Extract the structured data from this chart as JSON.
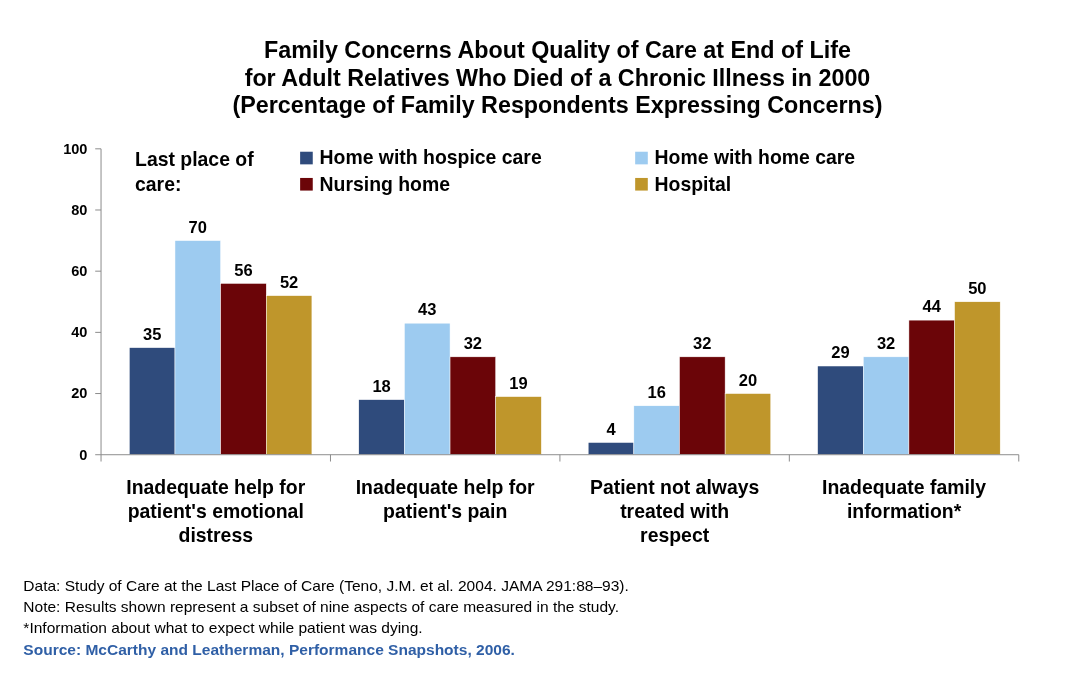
{
  "chart_data": {
    "type": "bar",
    "title": "Family Concerns About Quality of Care at End of Life\nfor Adult Relatives Who Died of a Chronic Illness in 2000\n(Percentage of Family Respondents Expressing Concerns)",
    "categories": [
      "Inadequate help for patient's emotional distress",
      "Inadequate help for patient's pain",
      "Patient not always treated with respect",
      "Inadequate family information*"
    ],
    "legend_title": "Last place of care:",
    "series": [
      {
        "name": "Home with hospice care",
        "color": "#2f4b7c",
        "values": [
          35,
          18,
          4,
          29
        ]
      },
      {
        "name": "Home with home care",
        "color": "#9dcbf0",
        "values": [
          70,
          43,
          16,
          32
        ]
      },
      {
        "name": "Nursing home",
        "color": "#6b0508",
        "values": [
          56,
          32,
          32,
          44
        ]
      },
      {
        "name": "Hospital",
        "color": "#bf962b",
        "values": [
          52,
          19,
          20,
          50
        ]
      }
    ],
    "ylim": [
      0,
      100
    ],
    "yticks": [
      0,
      20,
      40,
      60,
      80,
      100
    ],
    "legend": "top left",
    "data_labels": true,
    "annotations": [
      "Data: Study of Care at the Last Place of Care (Teno, J.M. et al. 2004. JAMA 291:88–93).",
      "Note: Results shown represent a subset of nine aspects of care measured in the study.",
      "*Information about what to expect while patient was dying.",
      "Source: McCarthy and Leatherman, Performance Snapshots, 2006."
    ]
  }
}
